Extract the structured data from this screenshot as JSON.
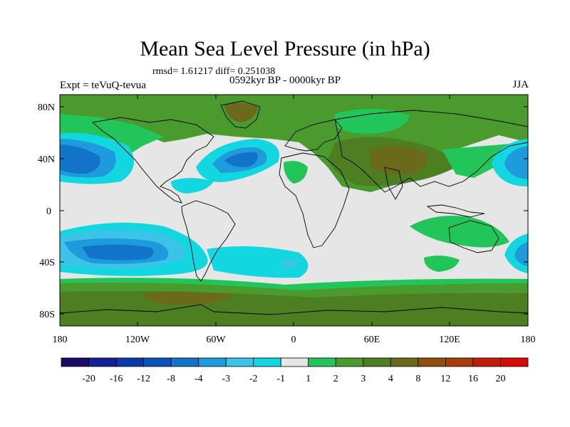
{
  "title": "Mean Sea Level Pressure (in hPa)",
  "stats": "rmsd= 1.61217 diff= 0.251038",
  "period": "0592kyr BP - 0000kyr BP",
  "experiment": "Expt = teVuQ-tevua",
  "season": "JJA",
  "latitude_labels": [
    "80N",
    "40N",
    "0",
    "40S",
    "80S"
  ],
  "longitude_labels": [
    "180",
    "120W",
    "60W",
    "0",
    "60E",
    "120E",
    "180"
  ],
  "colorbar": {
    "labels": [
      "-20",
      "-16",
      "-12",
      "-8",
      "-4",
      "-3",
      "-2",
      "-1",
      "1",
      "2",
      "3",
      "4",
      "8",
      "12",
      "16",
      "20"
    ],
    "colors": [
      "#1a0a66",
      "#142096",
      "#0b3aa8",
      "#0b53bb",
      "#1174c8",
      "#1d9bdc",
      "#3cc3e8",
      "#12d6e0",
      "#e6e6e6",
      "#22c55a",
      "#4a9a2e",
      "#4e7e22",
      "#6b6a1a",
      "#8c5010",
      "#a83d0a",
      "#c01e0a",
      "#d80a05"
    ]
  },
  "map_colors": {
    "neutral": "#e6e6e6",
    "level_neg1": "#12d6e0",
    "level_neg2": "#3cc3e8",
    "level_neg3": "#1d9bdc",
    "level_neg4": "#1174c8",
    "level_neg8": "#0b53bb",
    "level_pos1": "#22c55a",
    "level_pos2": "#4a9a2e",
    "level_pos3": "#4e7e22",
    "level_pos4": "#6b6a1a"
  }
}
